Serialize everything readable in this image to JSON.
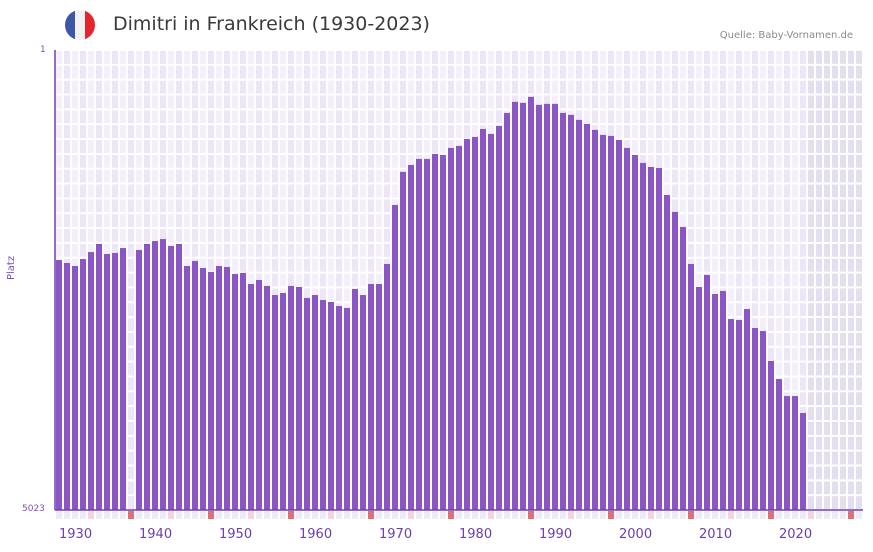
{
  "header": {
    "title": "Dimitri in Frankreich (1930-2023)",
    "source": "Quelle: Baby-Vornamen.de",
    "flag_colors": [
      "#3b57a5",
      "#f2f2f2",
      "#e5252e"
    ]
  },
  "axes": {
    "y_label": "Platz",
    "y_top_tick": "1",
    "y_bottom_tick": "5023",
    "x_ticks": [
      "1930",
      "1940",
      "1950",
      "1960",
      "1970",
      "1980",
      "1990",
      "2000",
      "2010",
      "2020"
    ]
  },
  "colors": {
    "bar": "#8c55c6",
    "grid_bg_a": "#f3effb",
    "grid_bg_b": "#ece6f7",
    "future_bg": "#e3dfee",
    "axis": "#6a3fb0",
    "marker_decade": "#e07078",
    "marker_half": "#f5d5dd"
  },
  "chart_data": {
    "type": "bar",
    "title": "Dimitri in Frankreich (1930-2023)",
    "xlabel": "",
    "ylabel": "Platz",
    "y_inverted": true,
    "ylim": [
      1,
      5023
    ],
    "source": "Quelle: Baby-Vornamen.de",
    "x": [
      1929,
      1930,
      1931,
      1932,
      1933,
      1934,
      1935,
      1936,
      1937,
      1938,
      1939,
      1940,
      1941,
      1942,
      1943,
      1944,
      1945,
      1946,
      1947,
      1948,
      1949,
      1950,
      1951,
      1952,
      1953,
      1954,
      1955,
      1956,
      1957,
      1958,
      1959,
      1960,
      1961,
      1962,
      1963,
      1964,
      1965,
      1966,
      1967,
      1968,
      1969,
      1970,
      1971,
      1972,
      1973,
      1974,
      1975,
      1976,
      1977,
      1978,
      1979,
      1980,
      1981,
      1982,
      1983,
      1984,
      1985,
      1986,
      1987,
      1988,
      1989,
      1990,
      1991,
      1992,
      1993,
      1994,
      1995,
      1996,
      1997,
      1998,
      1999,
      2000,
      2001,
      2002,
      2003,
      2004,
      2005,
      2006,
      2007,
      2008,
      2009,
      2010,
      2011,
      2012,
      2013,
      2014,
      2015,
      2016,
      2017,
      2018,
      2019,
      2020,
      2021,
      2022
    ],
    "values": [
      2294,
      2326,
      2359,
      2283,
      2207,
      2119,
      2228,
      2217,
      2163,
      null,
      2184,
      2119,
      2087,
      2065,
      2141,
      2119,
      2359,
      2305,
      2381,
      2425,
      2359,
      2370,
      2446,
      2435,
      2556,
      2512,
      2577,
      2676,
      2654,
      2577,
      2588,
      2708,
      2676,
      2730,
      2752,
      2796,
      2817,
      2610,
      2676,
      2556,
      2556,
      2337,
      1693,
      1332,
      1256,
      1190,
      1190,
      1136,
      1147,
      1070,
      1048,
      972,
      950,
      863,
      917,
      830,
      688,
      567,
      578,
      513,
      600,
      589,
      589,
      688,
      709,
      764,
      808,
      873,
      928,
      939,
      983,
      1070,
      1147,
      1234,
      1278,
      1289,
      1584,
      1769,
      1933,
      2337,
      2588,
      2457,
      2665,
      2632,
      2938,
      2949,
      2829,
      3036,
      3069,
      3396,
      3593,
      3779,
      3779,
      3964
    ]
  }
}
